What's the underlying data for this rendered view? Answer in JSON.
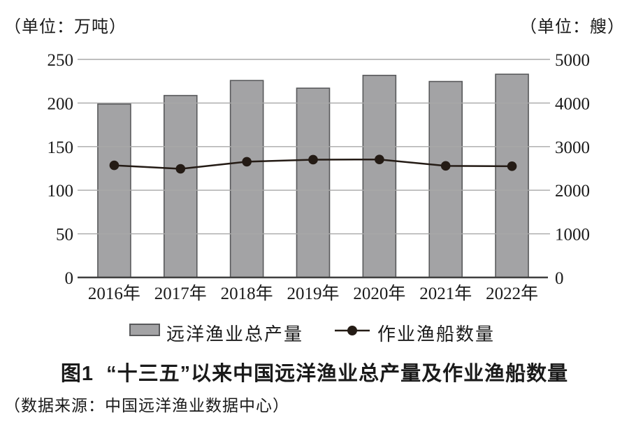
{
  "units": {
    "left": "（单位：万吨）",
    "right": "（单位：艘）"
  },
  "chart_data": {
    "type": "bar+line",
    "categories": [
      "2016年",
      "2017年",
      "2018年",
      "2019年",
      "2020年",
      "2021年",
      "2022年"
    ],
    "series": [
      {
        "name": "远洋渔业总产量",
        "type": "bar",
        "axis": "left",
        "values": [
          198.8,
          208.6,
          225.8,
          217.0,
          231.7,
          224.7,
          233.0
        ],
        "fill_color": "#a3a3a5",
        "border_color": "#58595b"
      },
      {
        "name": "作业渔船数量",
        "type": "line",
        "axis": "right",
        "values": [
          2571,
          2491,
          2654,
          2701,
          2705,
          2559,
          2551
        ],
        "line_color": "#241b15"
      }
    ],
    "left_axis": {
      "min": 0,
      "max": 250,
      "step": 50,
      "tick_labels": [
        "0",
        "50",
        "100",
        "150",
        "200",
        "250"
      ]
    },
    "right_axis": {
      "min": 0,
      "max": 5000,
      "step": 1000,
      "tick_labels": [
        "0",
        "1000",
        "2000",
        "3000",
        "4000",
        "5000"
      ]
    },
    "grid": true,
    "gridline_color": "#a8a8a8",
    "axis_line_color": "#3f3f3f",
    "legend_position": "bottom",
    "title": "图1　“十三五”以来中国远洋渔业总产量及作业渔船数量"
  },
  "legend": {
    "bar_label": "远洋渔业总产量",
    "line_label": "作业渔船数量"
  },
  "caption": {
    "title_prefix": "图1",
    "title_text": "“十三五”以来中国远洋渔业总产量及作业渔船数量",
    "source": "（数据来源：中国远洋渔业数据中心）"
  }
}
